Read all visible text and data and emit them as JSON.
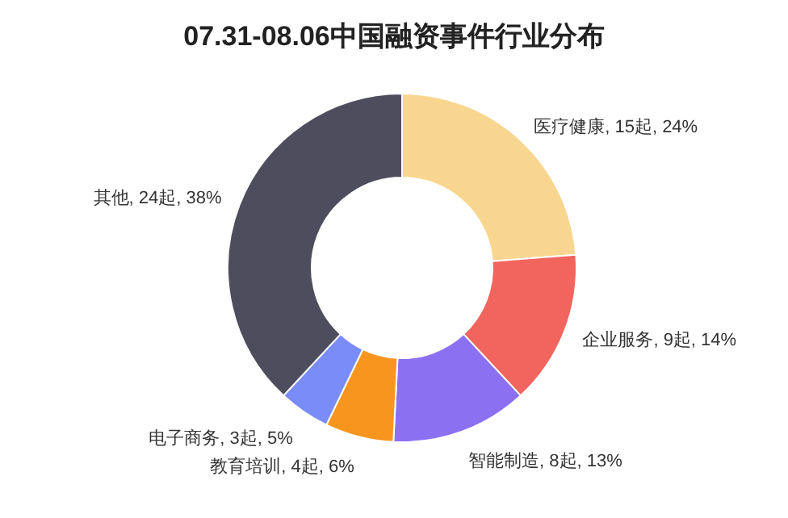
{
  "chart_data": {
    "type": "donut",
    "title": "07.31-08.06中国融资事件行业分布",
    "categories": [
      "医疗健康",
      "企业服务",
      "智能制造",
      "教育培训",
      "电子商务",
      "其他"
    ],
    "values": [
      15,
      9,
      8,
      4,
      3,
      24
    ],
    "value_labels": [
      "15起, 24%",
      "9起, 14%",
      "8起, 13%",
      "4起, 6%",
      "3起, 5%",
      "24起, 38%"
    ],
    "colors": [
      "#f9d68f",
      "#f2655e",
      "#8c70f2",
      "#f8951f",
      "#7a8cf8",
      "#4e4d5d"
    ]
  }
}
